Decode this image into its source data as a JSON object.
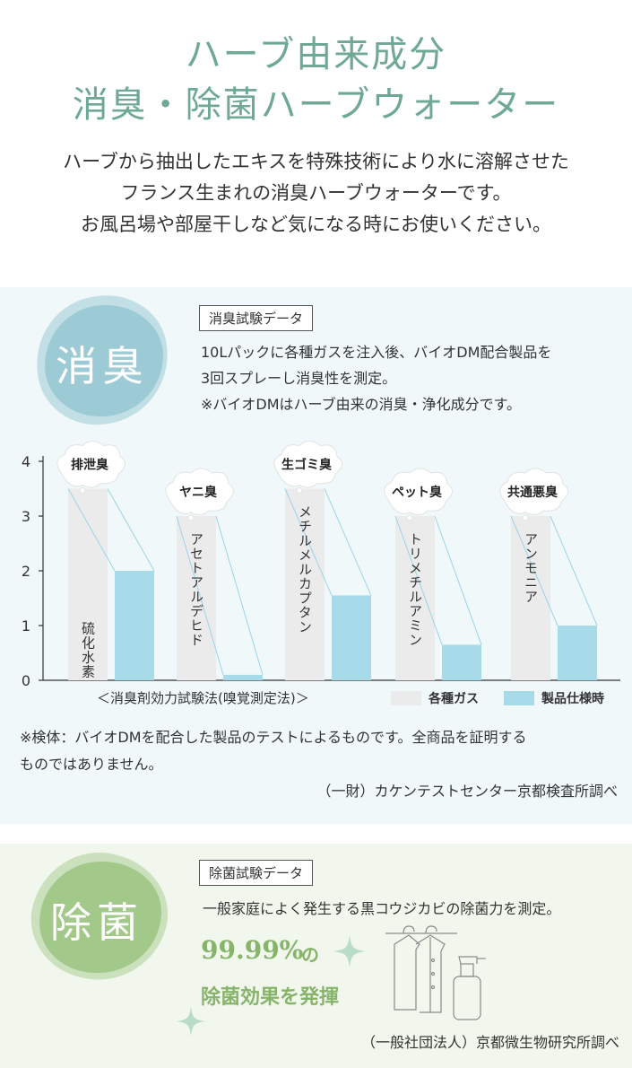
{
  "header": {
    "title_line1": "ハーブ由来成分",
    "title_line2": "消臭・除菌ハーブウォーター",
    "intro_line1": "ハーブから抽出したエキスを特殊技術により水に溶解させた",
    "intro_line2": "フランス生まれの消臭ハーブウォーターです。",
    "intro_line3": "お風呂場や部屋干しなど気になる時にお使いください。"
  },
  "deodorant": {
    "badge": "消臭",
    "tag": "消臭試験データ",
    "desc_line1": "10Lパックに各種ガスを注入後、バイオDM配合製品を",
    "desc_line2": "3回スプレーし消臭性を測定。",
    "desc_line3": "※バイオDMはハーブ由来の消臭・浄化成分です。",
    "method_label": "＜消臭剤効力試験法(嗅覚測定法)＞",
    "note_line1": "※検体：バイオDMを配合した製品のテストによるものです。全商品を証明する",
    "note_line2": "ものではありません。",
    "credit": "（一財）カケンテストセンター京都検査所調べ",
    "colors": {
      "gas": "#ebebeb",
      "product": "#a8dbe9",
      "line": "#9ad4e6",
      "badge": "#9ccbd6"
    }
  },
  "chart_data": {
    "type": "bar",
    "categories": [
      "排泄臭",
      "ヤニ臭",
      "生ゴミ臭",
      "ペット臭",
      "共通悪臭"
    ],
    "gas_labels": [
      "硫化水素",
      "アセトアルデヒド",
      "メチルメルカプタン",
      "トリメチルアミン",
      "アンモニア"
    ],
    "series": [
      {
        "name": "各種ガス",
        "values": [
          3.5,
          3.0,
          3.5,
          3.0,
          3.0
        ]
      },
      {
        "name": "製品仕様時",
        "values": [
          2.0,
          0.1,
          1.55,
          0.65,
          1.0
        ]
      }
    ],
    "ylim": [
      0,
      4
    ],
    "yticks": [
      "0",
      "1",
      "2",
      "3",
      "4"
    ],
    "legend": "bottom-right",
    "grid": false
  },
  "sterilization": {
    "badge": "除菌",
    "tag": "除菌試験データ",
    "desc": "一般家庭によく発生する黒コウジカビの除菌力を測定。",
    "percent": "99.99%",
    "percent_suffix": "の",
    "effect": "除菌効果を発揮",
    "credit": "（一般社団法人）京都微生物研究所調べ",
    "colors": {
      "badge": "#a3c98a",
      "sparkle": "#b9dcc6"
    }
  }
}
